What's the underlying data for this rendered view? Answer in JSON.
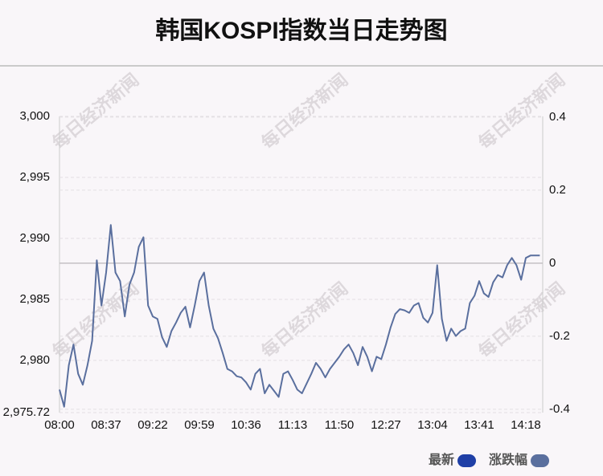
{
  "chart_data": {
    "type": "line",
    "title": "韩国KOSPI指数当日走势图",
    "watermark": "每日经济新闻",
    "categories": [
      "08:00",
      null,
      null,
      null,
      null,
      null,
      null,
      null,
      null,
      null,
      "08:37",
      null,
      null,
      null,
      null,
      null,
      null,
      null,
      null,
      null,
      "09:22",
      null,
      null,
      null,
      null,
      null,
      null,
      null,
      null,
      null,
      "09:59",
      null,
      null,
      null,
      null,
      null,
      null,
      null,
      null,
      null,
      "10:36",
      null,
      null,
      null,
      null,
      null,
      null,
      null,
      null,
      null,
      "11:13",
      null,
      null,
      null,
      null,
      null,
      null,
      null,
      null,
      null,
      "11:50",
      null,
      null,
      null,
      null,
      null,
      null,
      null,
      null,
      null,
      "12:27",
      null,
      null,
      null,
      null,
      null,
      null,
      null,
      null,
      null,
      "13:04",
      null,
      null,
      null,
      null,
      null,
      null,
      null,
      null,
      null,
      "13:41",
      null,
      null,
      null,
      null,
      null,
      null,
      null,
      null,
      null,
      "14:18",
      null,
      null,
      null
    ],
    "series": [
      {
        "color": "#5a6f9e",
        "values": [
          2977.6,
          2976.2,
          2979.6,
          2981.3,
          2978.9,
          2978.0,
          2979.6,
          2981.6,
          2988.2,
          2984.5,
          2987.2,
          2991.1,
          2987.2,
          2986.5,
          2983.6,
          2986.2,
          2987.2,
          2989.3,
          2990.1,
          2984.5,
          2983.6,
          2983.4,
          2981.9,
          2981.1,
          2982.4,
          2983.1,
          2983.9,
          2984.4,
          2982.7,
          2984.5,
          2986.5,
          2987.2,
          2984.5,
          2982.6,
          2981.8,
          2980.6,
          2979.3,
          2979.1,
          2978.7,
          2978.6,
          2978.2,
          2977.6,
          2978.9,
          2979.3,
          2977.3,
          2978.0,
          2977.5,
          2977.0,
          2978.9,
          2979.1,
          2978.4,
          2977.6,
          2977.3,
          2978.1,
          2978.9,
          2979.8,
          2979.3,
          2978.6,
          2979.3,
          2979.8,
          2980.3,
          2980.9,
          2981.3,
          2980.6,
          2979.6,
          2981.1,
          2980.3,
          2979.1,
          2980.3,
          2980.1,
          2981.3,
          2982.7,
          2983.8,
          2984.2,
          2984.1,
          2983.9,
          2984.5,
          2984.7,
          2983.5,
          2983.1,
          2983.9,
          2987.8,
          2983.4,
          2981.6,
          2982.6,
          2982.0,
          2982.4,
          2982.6,
          2984.7,
          2985.3,
          2986.5,
          2985.5,
          2985.2,
          2986.4,
          2987.0,
          2986.8,
          2987.8,
          2988.4,
          2987.8,
          2986.6,
          2988.4,
          2988.6,
          2988.6,
          2988.6
        ]
      }
    ],
    "legend": [
      {
        "name": "最新",
        "color": "#1f3fa6"
      },
      {
        "name": "涨跌幅",
        "color": "#5a6f9e"
      }
    ],
    "ylim": [
      2975.72,
      3000
    ],
    "yticks": [
      {
        "value": 2975.72,
        "label": "2,975.72"
      },
      {
        "value": 2980,
        "label": "2,980"
      },
      {
        "value": 2985,
        "label": "2,985"
      },
      {
        "value": 2990,
        "label": "2,990"
      },
      {
        "value": 2995,
        "label": "2,995"
      },
      {
        "value": 3000,
        "label": "3,000"
      }
    ],
    "y2lim": [
      -0.409,
      0.402
    ],
    "y2ticks": [
      0.4,
      0.2,
      0,
      -0.2,
      -0.4
    ],
    "grid": true
  }
}
